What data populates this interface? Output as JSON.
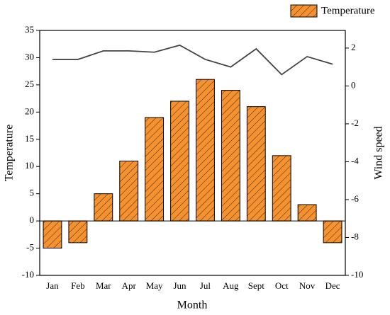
{
  "chart_data": {
    "type": "bar-line",
    "x_label": "Month",
    "y_label": "Temperature",
    "y2_label": "Wind speed",
    "categories": [
      "Jan",
      "Feb",
      "Mar",
      "Apr",
      "May",
      "Jun",
      "Jul",
      "Aug",
      "Sept",
      "Oct",
      "Nov",
      "Dec"
    ],
    "series": [
      {
        "name": "Temperature",
        "type": "bar",
        "color": "#f5922f",
        "hatch": true,
        "values": [
          -5,
          -4,
          5,
          11,
          19,
          22,
          26,
          24,
          21,
          12,
          3,
          -4
        ]
      },
      {
        "type": "line",
        "axis": "y2",
        "color": "#444444",
        "values": [
          1.4,
          1.4,
          1.85,
          1.85,
          1.78,
          2.15,
          1.4,
          1.0,
          1.96,
          0.6,
          1.55,
          1.15
        ]
      }
    ],
    "ylim": [
      -10,
      35
    ],
    "yticks": [
      -10,
      -5,
      0,
      5,
      10,
      15,
      20,
      25,
      30,
      35
    ],
    "y2lim": [
      -10,
      2.93
    ],
    "y2ticks": [
      -10,
      -8,
      -6,
      -4,
      -2,
      0,
      2
    ],
    "legend": "top-right"
  }
}
